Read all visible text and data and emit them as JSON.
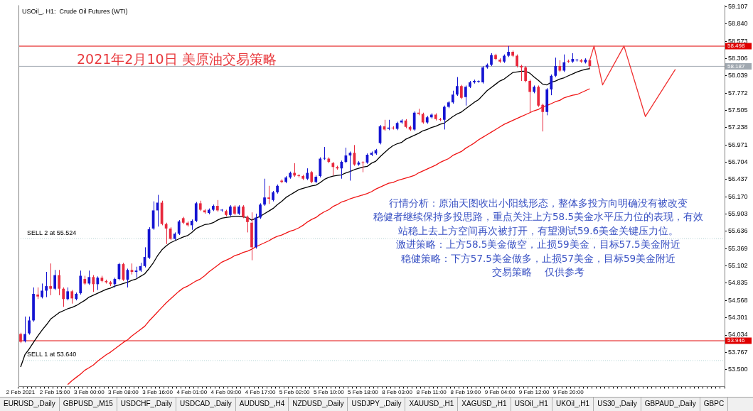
{
  "chart_data": {
    "type": "candlestick",
    "title": "2021年2月10日 美原油交易策略",
    "subtitle": "USOil_, H1:  Crude Oil Futures (WTI)",
    "categories": [
      "2 Feb 2021",
      null,
      null,
      null,
      null,
      null,
      null,
      null,
      "2 Feb 15:00",
      null,
      null,
      null,
      null,
      null,
      null,
      null,
      "3 Feb 00:00",
      null,
      null,
      null,
      null,
      null,
      null,
      null,
      "3 Feb 08:00",
      null,
      null,
      null,
      null,
      null,
      null,
      null,
      "3 Feb 16:00",
      null,
      null,
      null,
      null,
      null,
      null,
      null,
      "4 Feb 01:00",
      null,
      null,
      null,
      null,
      null,
      null,
      null,
      "4 Feb 09:00",
      null,
      null,
      null,
      null,
      null,
      null,
      null,
      "4 Feb 17:00",
      null,
      null,
      null,
      null,
      null,
      null,
      null,
      "5 Feb 02:00",
      null,
      null,
      null,
      null,
      null,
      null,
      null,
      "5 Feb 10:00",
      null,
      null,
      null,
      null,
      null,
      null,
      null,
      "5 Feb 18:00",
      null,
      null,
      null,
      null,
      null,
      null,
      null,
      "8 Feb 03:00",
      null,
      null,
      null,
      null,
      null,
      null,
      null,
      "8 Feb 11:00",
      null,
      null,
      null,
      null,
      null,
      null,
      null,
      "8 Feb 19:00",
      null,
      null,
      null,
      null,
      null,
      null,
      null,
      "9 Feb 04:00",
      null,
      null,
      null,
      null,
      null,
      null,
      null,
      "9 Feb 12:00",
      null,
      null,
      null,
      null,
      null,
      null,
      null,
      "9 Feb 20:00",
      null,
      null,
      null,
      null,
      null,
      null,
      null,
      null,
      null,
      null,
      null,
      null,
      null,
      null,
      null,
      null,
      null,
      null,
      null,
      null,
      null,
      null,
      null,
      null,
      null,
      null,
      null,
      null,
      null,
      null,
      null,
      null,
      null,
      null,
      null,
      null
    ],
    "ohlc": [
      [
        54.05,
        54.07,
        53.91,
        53.93
      ],
      [
        53.94,
        54.32,
        53.92,
        54.05
      ],
      [
        54.06,
        54.32,
        54.04,
        54.26
      ],
      [
        54.26,
        54.77,
        54.24,
        54.67
      ],
      [
        54.66,
        54.77,
        54.59,
        54.63
      ],
      [
        54.62,
        54.83,
        54.6,
        54.72
      ],
      [
        54.72,
        55.01,
        54.62,
        54.79
      ],
      [
        54.79,
        55.14,
        54.65,
        54.75
      ],
      [
        54.75,
        55.04,
        54.73,
        54.96
      ],
      [
        54.96,
        55.04,
        54.65,
        54.75
      ],
      [
        54.75,
        54.77,
        54.47,
        54.59
      ],
      [
        54.59,
        54.77,
        54.57,
        54.71
      ],
      [
        54.71,
        54.73,
        54.52,
        54.6
      ],
      [
        54.59,
        54.69,
        54.57,
        54.67
      ],
      [
        54.68,
        55.03,
        54.66,
        54.95
      ],
      [
        54.9,
        54.95,
        54.81,
        54.83
      ],
      [
        54.83,
        55.03,
        54.81,
        54.93
      ],
      [
        54.93,
        54.96,
        54.7,
        54.82
      ],
      [
        54.82,
        54.94,
        54.73,
        54.92
      ],
      [
        54.92,
        54.95,
        54.85,
        54.87
      ],
      [
        54.87,
        54.89,
        54.83,
        54.85
      ],
      [
        54.85,
        54.87,
        54.79,
        54.82
      ],
      [
        54.82,
        54.92,
        54.77,
        54.9
      ],
      [
        54.9,
        55.15,
        54.88,
        55.13
      ],
      [
        55.13,
        55.15,
        54.87,
        54.89
      ],
      [
        54.89,
        55.06,
        54.77,
        55.04
      ],
      [
        55.04,
        55.14,
        54.97,
        55.01
      ],
      [
        55.01,
        55.09,
        54.92,
        55.03
      ],
      [
        55.03,
        55.15,
        55.01,
        55.1
      ],
      [
        55.1,
        55.39,
        55.08,
        55.24
      ],
      [
        55.23,
        55.7,
        55.21,
        55.67
      ],
      [
        55.68,
        56.1,
        55.66,
        55.96
      ],
      [
        55.96,
        56.2,
        55.71,
        56.08
      ],
      [
        56.08,
        56.11,
        55.73,
        55.75
      ],
      [
        55.75,
        55.77,
        55.44,
        55.68
      ],
      [
        55.68,
        55.7,
        55.5,
        55.52
      ],
      [
        55.52,
        55.62,
        55.5,
        55.6
      ],
      [
        55.6,
        55.81,
        55.58,
        55.79
      ],
      [
        55.84,
        55.86,
        55.75,
        55.77
      ],
      [
        55.77,
        55.79,
        55.71,
        55.73
      ],
      [
        55.73,
        55.82,
        55.66,
        55.8
      ],
      [
        55.8,
        56.09,
        55.78,
        56.07
      ],
      [
        56.07,
        56.11,
        55.95,
        55.97
      ],
      [
        55.96,
        55.98,
        55.91,
        55.93
      ],
      [
        55.92,
        55.99,
        55.9,
        55.97
      ],
      [
        55.97,
        56.05,
        55.95,
        56.03
      ],
      [
        56.03,
        56.12,
        55.94,
        55.96
      ],
      [
        55.96,
        55.98,
        55.94,
        55.96
      ],
      [
        55.95,
        55.97,
        55.87,
        55.89
      ],
      [
        55.89,
        56.04,
        55.87,
        56.02
      ],
      [
        56.02,
        56.04,
        55.89,
        55.91
      ],
      [
        55.91,
        56.04,
        55.89,
        56.02
      ],
      [
        56.02,
        56.04,
        55.84,
        55.86
      ],
      [
        55.86,
        55.88,
        55.62,
        55.78
      ],
      [
        55.77,
        55.93,
        55.19,
        55.39
      ],
      [
        55.39,
        55.91,
        55.37,
        55.85
      ],
      [
        55.85,
        56.07,
        55.83,
        56.05
      ],
      [
        56.05,
        56.45,
        56.03,
        56.16
      ],
      [
        56.16,
        56.34,
        56.06,
        56.14
      ],
      [
        56.12,
        56.26,
        56.1,
        56.24
      ],
      [
        56.24,
        56.36,
        56.22,
        56.34
      ],
      [
        56.42,
        56.44,
        56.38,
        56.4
      ],
      [
        56.4,
        56.49,
        56.38,
        56.47
      ],
      [
        56.47,
        56.56,
        56.45,
        56.54
      ],
      [
        56.54,
        56.69,
        56.48,
        56.5
      ],
      [
        56.5,
        56.52,
        56.47,
        56.49
      ],
      [
        56.49,
        56.51,
        56.43,
        56.45
      ],
      [
        56.45,
        56.61,
        56.43,
        56.54
      ],
      [
        56.55,
        56.57,
        56.38,
        56.4
      ],
      [
        56.4,
        56.5,
        56.38,
        56.48
      ],
      [
        56.49,
        56.78,
        56.47,
        56.76
      ],
      [
        56.76,
        56.94,
        56.74,
        56.77
      ],
      [
        56.76,
        56.78,
        56.69,
        56.71
      ],
      [
        56.69,
        56.71,
        56.5,
        56.63
      ],
      [
        56.63,
        56.65,
        56.59,
        56.61
      ],
      [
        56.61,
        56.73,
        56.45,
        56.71
      ],
      [
        56.71,
        56.93,
        56.69,
        56.81
      ],
      [
        56.81,
        56.87,
        56.42,
        56.85
      ],
      [
        56.85,
        56.97,
        56.65,
        56.67
      ],
      [
        56.67,
        56.72,
        56.65,
        56.7
      ],
      [
        56.7,
        56.72,
        56.55,
        56.69
      ],
      [
        56.7,
        56.84,
        56.68,
        56.82
      ],
      [
        56.82,
        56.87,
        56.8,
        56.85
      ],
      [
        56.84,
        56.91,
        56.82,
        56.89
      ],
      [
        57.0,
        57.28,
        56.98,
        57.26
      ],
      [
        57.26,
        57.36,
        57.19,
        57.21
      ],
      [
        57.22,
        57.36,
        57.2,
        57.24
      ],
      [
        57.24,
        57.26,
        57.21,
        57.23
      ],
      [
        57.22,
        57.33,
        57.2,
        57.31
      ],
      [
        57.32,
        57.37,
        57.3,
        57.35
      ],
      [
        57.35,
        57.37,
        57.23,
        57.25
      ],
      [
        57.25,
        57.27,
        57.19,
        57.21
      ],
      [
        57.21,
        57.49,
        57.19,
        57.47
      ],
      [
        57.47,
        57.53,
        57.43,
        57.45
      ],
      [
        57.45,
        57.47,
        57.3,
        57.32
      ],
      [
        57.32,
        57.42,
        57.3,
        57.4
      ],
      [
        57.4,
        57.46,
        57.38,
        57.44
      ],
      [
        57.44,
        57.46,
        57.35,
        57.37
      ],
      [
        57.37,
        57.39,
        57.34,
        57.36
      ],
      [
        57.36,
        57.58,
        57.21,
        57.56
      ],
      [
        57.56,
        57.65,
        57.54,
        57.63
      ],
      [
        57.63,
        57.81,
        57.61,
        57.75
      ],
      [
        57.75,
        58.02,
        57.73,
        57.88
      ],
      [
        57.88,
        57.9,
        57.68,
        57.7
      ],
      [
        57.71,
        57.89,
        57.58,
        57.87
      ],
      [
        57.87,
        57.96,
        57.85,
        57.94
      ],
      [
        57.94,
        57.98,
        57.92,
        57.96
      ],
      [
        57.95,
        57.97,
        57.93,
        57.95
      ],
      [
        57.94,
        58.19,
        57.92,
        58.17
      ],
      [
        58.17,
        58.23,
        58.15,
        58.21
      ],
      [
        58.21,
        58.39,
        58.19,
        58.36
      ],
      [
        58.36,
        58.38,
        58.28,
        58.3
      ],
      [
        58.29,
        58.31,
        58.24,
        58.26
      ],
      [
        58.26,
        58.37,
        58.24,
        58.35
      ],
      [
        58.35,
        58.5,
        58.33,
        58.41
      ],
      [
        58.41,
        58.43,
        58.33,
        58.35
      ],
      [
        58.35,
        58.37,
        58.17,
        58.19
      ],
      [
        58.19,
        58.21,
        57.96,
        58.17
      ],
      [
        58.17,
        58.19,
        57.94,
        57.96
      ],
      [
        57.96,
        57.98,
        57.47,
        57.79
      ],
      [
        57.79,
        57.89,
        57.77,
        57.87
      ],
      [
        57.87,
        57.89,
        57.56,
        57.58
      ],
      [
        57.59,
        57.61,
        57.18,
        57.48
      ],
      [
        57.48,
        57.85,
        57.43,
        57.83
      ],
      [
        57.83,
        58.06,
        57.74,
        58.04
      ],
      [
        58.04,
        58.32,
        58.02,
        58.19
      ],
      [
        58.19,
        58.28,
        58.1,
        58.12
      ],
      [
        58.12,
        58.37,
        58.1,
        58.25
      ],
      [
        58.27,
        58.29,
        58.24,
        58.26
      ],
      [
        58.26,
        58.39,
        58.24,
        58.3
      ],
      [
        58.28,
        58.3,
        58.26,
        58.28
      ],
      [
        58.28,
        58.3,
        58.24,
        58.26
      ],
      [
        58.25,
        58.31,
        58.23,
        58.29
      ],
      [
        58.28,
        58.3,
        58.15,
        58.19
      ],
      null,
      null,
      null,
      null,
      null,
      null,
      null,
      null,
      null,
      null,
      null,
      null,
      null,
      null,
      null,
      null,
      null,
      null,
      null,
      null,
      null,
      null,
      null,
      null,
      null,
      null,
      null,
      null,
      null,
      null,
      null
    ],
    "colors": [
      "#e8283c",
      "#1414d2",
      "#1414d2",
      "#1414d2",
      "#e8283c",
      "#1414d2",
      "#1414d2",
      "#e8283c",
      "#1414d2",
      "#e8283c",
      "#e8283c",
      "#1414d2",
      "#e8283c",
      "#1414d2",
      "#1414d2",
      "#e8283c",
      "#1414d2",
      "#e8283c",
      "#1414d2",
      "#e8283c",
      "#e8283c",
      "#e8283c",
      "#1414d2",
      "#1414d2",
      "#e8283c",
      "#1414d2",
      "#e8283c",
      "#1414d2",
      "#1414d2",
      "#1414d2",
      "#1414d2",
      "#1414d2",
      "#1414d2",
      "#e8283c",
      "#e8283c",
      "#e8283c",
      "#1414d2",
      "#1414d2",
      "#e8283c",
      "#e8283c",
      "#1414d2",
      "#1414d2",
      "#e8283c",
      "#e8283c",
      "#1414d2",
      "#1414d2",
      "#e8283c",
      "#1414d2",
      "#e8283c",
      "#1414d2",
      "#e8283c",
      "#1414d2",
      "#e8283c",
      "#e8283c",
      "#e8283c",
      "#1414d2",
      "#1414d2",
      "#1414d2",
      "#e8283c",
      "#1414d2",
      "#1414d2",
      "#e8283c",
      "#1414d2",
      "#1414d2",
      "#e8283c",
      "#e8283c",
      "#e8283c",
      "#1414d2",
      "#e8283c",
      "#1414d2",
      "#1414d2",
      "#1414d2",
      "#e8283c",
      "#e8283c",
      "#e8283c",
      "#1414d2",
      "#1414d2",
      "#1414d2",
      "#e8283c",
      "#1414d2",
      "#e8283c",
      "#1414d2",
      "#1414d2",
      "#1414d2",
      "#1414d2",
      "#e8283c",
      "#1414d2",
      "#e8283c",
      "#1414d2",
      "#1414d2",
      "#e8283c",
      "#e8283c",
      "#1414d2",
      "#e8283c",
      "#e8283c",
      "#1414d2",
      "#1414d2",
      "#e8283c",
      "#e8283c",
      "#1414d2",
      "#1414d2",
      "#1414d2",
      "#1414d2",
      "#e8283c",
      "#1414d2",
      "#1414d2",
      "#1414d2",
      "#1414d2",
      "#1414d2",
      "#1414d2",
      "#1414d2",
      "#e8283c",
      "#e8283c",
      "#1414d2",
      "#1414d2",
      "#e8283c",
      "#e8283c",
      "#e8283c",
      "#e8283c",
      "#e8283c",
      "#1414d2",
      "#e8283c",
      "#e8283c",
      "#1414d2",
      "#1414d2",
      "#1414d2",
      "#e8283c",
      "#1414d2",
      "#e8283c",
      "#1414d2",
      "#1414d2",
      "#e8283c",
      "#1414d2",
      "#e8283c",
      null,
      null,
      null,
      null,
      null,
      null,
      null,
      null,
      null,
      null,
      null,
      null,
      null,
      null,
      null,
      null,
      null,
      null,
      null,
      null,
      null,
      null,
      null,
      null,
      null,
      null,
      null,
      null,
      null,
      null,
      null
    ],
    "series": [
      {
        "type": "line",
        "color": "#000000",
        "values": [
          53.54,
          53.73,
          53.82,
          53.92,
          54.02,
          54.11,
          54.19,
          54.28,
          54.33,
          54.38,
          54.41,
          54.44,
          54.46,
          54.49,
          54.53,
          54.57,
          54.62,
          54.65,
          54.68,
          54.71,
          54.74,
          54.76,
          54.79,
          54.81,
          54.83,
          54.85,
          54.88,
          54.9,
          54.94,
          54.98,
          55.06,
          55.15,
          55.26,
          55.35,
          55.41,
          55.46,
          55.49,
          55.52,
          55.55,
          55.57,
          55.62,
          55.68,
          55.71,
          55.74,
          55.75,
          55.77,
          55.81,
          55.84,
          55.85,
          55.86,
          55.87,
          55.87,
          55.86,
          55.85,
          55.81,
          55.84,
          55.87,
          55.91,
          55.95,
          55.99,
          56.05,
          56.1,
          56.16,
          56.2,
          56.24,
          56.28,
          56.3,
          56.32,
          56.34,
          56.35,
          56.39,
          56.44,
          56.47,
          56.49,
          56.5,
          56.51,
          56.54,
          56.56,
          56.59,
          56.61,
          56.63,
          56.64,
          56.69,
          56.72,
          56.79,
          56.85,
          56.91,
          56.96,
          56.99,
          57.01,
          57.06,
          57.09,
          57.12,
          57.15,
          57.19,
          57.21,
          57.24,
          57.26,
          57.29,
          57.31,
          57.36,
          57.41,
          57.45,
          57.48,
          57.53,
          57.58,
          57.63,
          57.67,
          57.74,
          57.81,
          57.86,
          57.91,
          57.96,
          57.99,
          58.04,
          58.09,
          58.1,
          58.11,
          58.11,
          58.08,
          58.02,
          57.97,
          57.91,
          57.9,
          57.94,
          57.96,
          57.99,
          58.01,
          58.04,
          58.07,
          58.1,
          58.12,
          58.14,
          58.15,
          null,
          null,
          null,
          null,
          null,
          null,
          null,
          null,
          null,
          null,
          null,
          null,
          null,
          null,
          null,
          null,
          null,
          null,
          null,
          null,
          null,
          null,
          null,
          null,
          null,
          null,
          null,
          null,
          null,
          null,
          null
        ]
      },
      {
        "type": "line",
        "color": "#f01414",
        "values": [
          null,
          null,
          null,
          null,
          null,
          null,
          null,
          null,
          null,
          null,
          null,
          53.27,
          53.33,
          53.38,
          53.43,
          53.49,
          53.53,
          53.57,
          53.63,
          53.68,
          53.73,
          53.77,
          53.82,
          53.87,
          53.92,
          53.96,
          54.02,
          54.07,
          54.12,
          54.17,
          54.25,
          54.32,
          54.39,
          54.46,
          54.53,
          54.59,
          54.65,
          54.71,
          54.76,
          54.79,
          54.83,
          54.87,
          54.9,
          54.95,
          55.01,
          55.06,
          55.11,
          55.16,
          55.19,
          55.22,
          55.26,
          55.28,
          55.31,
          55.33,
          55.36,
          55.4,
          55.43,
          55.46,
          55.49,
          55.53,
          55.56,
          55.58,
          55.61,
          55.64,
          55.66,
          55.69,
          55.73,
          55.78,
          55.82,
          55.85,
          55.9,
          55.94,
          55.97,
          56.02,
          56.05,
          56.09,
          56.11,
          56.14,
          56.16,
          56.18,
          56.2,
          56.22,
          56.25,
          56.29,
          56.32,
          56.35,
          56.38,
          56.39,
          56.42,
          56.44,
          56.46,
          56.48,
          56.5,
          56.54,
          56.57,
          56.6,
          56.63,
          56.66,
          56.7,
          56.73,
          56.76,
          56.81,
          56.84,
          56.87,
          56.92,
          56.96,
          57.0,
          57.05,
          57.09,
          57.13,
          57.17,
          57.21,
          57.25,
          57.29,
          57.32,
          57.35,
          57.38,
          57.41,
          57.44,
          57.47,
          57.5,
          57.52,
          57.56,
          57.58,
          57.61,
          57.64,
          57.66,
          57.7,
          57.72,
          57.74,
          57.75,
          57.78,
          57.81,
          57.84,
          null,
          null,
          null,
          null,
          null,
          null,
          null,
          null,
          null,
          null,
          null,
          null,
          null,
          null,
          null,
          null,
          null,
          null,
          null,
          null,
          null,
          null,
          null,
          null,
          null,
          null,
          null,
          null,
          null,
          null,
          null
        ]
      },
      {
        "type": "line",
        "color": "#f03030",
        "values": [
          null,
          null,
          null,
          null,
          null,
          null,
          null,
          null,
          null,
          null,
          null,
          null,
          null,
          null,
          null,
          null,
          null,
          null,
          null,
          null,
          null,
          null,
          null,
          null,
          null,
          null,
          null,
          null,
          null,
          null,
          null,
          null,
          null,
          null,
          null,
          null,
          null,
          null,
          null,
          null,
          null,
          null,
          null,
          null,
          null,
          null,
          null,
          null,
          null,
          null,
          null,
          null,
          null,
          null,
          null,
          null,
          null,
          null,
          null,
          null,
          null,
          null,
          null,
          null,
          null,
          null,
          null,
          null,
          null,
          null,
          null,
          null,
          null,
          null,
          null,
          null,
          null,
          null,
          null,
          null,
          null,
          null,
          null,
          null,
          null,
          null,
          null,
          null,
          null,
          null,
          null,
          null,
          null,
          null,
          null,
          null,
          null,
          null,
          null,
          null,
          null,
          null,
          null,
          null,
          null,
          null,
          null,
          null,
          null,
          null,
          null,
          null,
          null,
          null,
          null,
          null,
          null,
          null,
          null,
          null,
          null,
          null,
          null,
          null,
          null,
          null,
          null,
          null,
          null,
          null,
          null,
          null,
          null,
          58.28,
          58.5,
          null,
          57.9,
          null,
          null,
          null,
          null,
          58.5,
          null,
          null,
          null,
          null,
          57.41,
          null,
          null,
          null,
          null,
          null,
          null,
          58.14,
          null,
          null,
          null,
          null,
          null,
          null,
          null,
          null,
          null,
          null,
          null
        ]
      }
    ],
    "ylim": [
      53.24,
      59.13
    ],
    "yticks": [
      59.107,
      {
        "value": 58.84,
        "label": "58.840"
      },
      58.573,
      58.306,
      58.039,
      57.772,
      57.505,
      57.238,
      56.971,
      56.704,
      56.437,
      {
        "value": 56.17,
        "label": "56.170"
      },
      55.903,
      55.636,
      55.369,
      55.102,
      54.835,
      54.568,
      54.301,
      54.034,
      53.767,
      {
        "value": 53.5,
        "label": "53.500"
      }
    ],
    "ref_lines": [
      {
        "axis": "y",
        "value": 58.498,
        "label": "58.498",
        "color": "#e00000",
        "line_style": "solid"
      },
      {
        "axis": "y",
        "value": 58.187,
        "label": "58.187",
        "color": "#a0a8b0",
        "line_style": "solid"
      },
      {
        "axis": "y",
        "value": 55.524,
        "label": "SELL 2 at 55.524",
        "color": "#b4d4d4",
        "line_style": "dotted"
      },
      {
        "axis": "y",
        "value": 53.946,
        "label": "53.946",
        "color": "#e00000",
        "line_style": "solid"
      },
      {
        "axis": "y",
        "value": 53.64,
        "label": "SELL 1 at 53.640",
        "color": "#b4d4d4",
        "line_style": "dotted"
      }
    ],
    "annotations": [
      "行情分析：原油天图收出小阳线形态，整体多投方向明确没有被改变",
      "稳健者继续保持多投思路，重点关注上方58.5美金水平压力位的表现，有效",
      "站稳上去上方空间再次被打开，有望测试59.6美金关键压力位。",
      "激进策略：上方58.5美金做空，止损59美金，目标57.5美金附近",
      "稳健策略：下方57.5美金做多，止损57美金，目标59美金附近",
      "交易策略    仅供参考",
      "EURUSD_,Daily",
      "GBPUSD_,M15",
      "USDCHF_,Daily",
      "USDCAD_,Daily",
      "AUDUSD_,H4",
      "NZDUSD_,Daily",
      "USDJPY_,Daily",
      "XAUUSD_,H1",
      "XAGUSD_,H1",
      "USOil_,H1",
      "UKOil_,H1",
      "US30_,Daily",
      "GBPAUD_,Daily",
      "GBPC"
    ]
  }
}
